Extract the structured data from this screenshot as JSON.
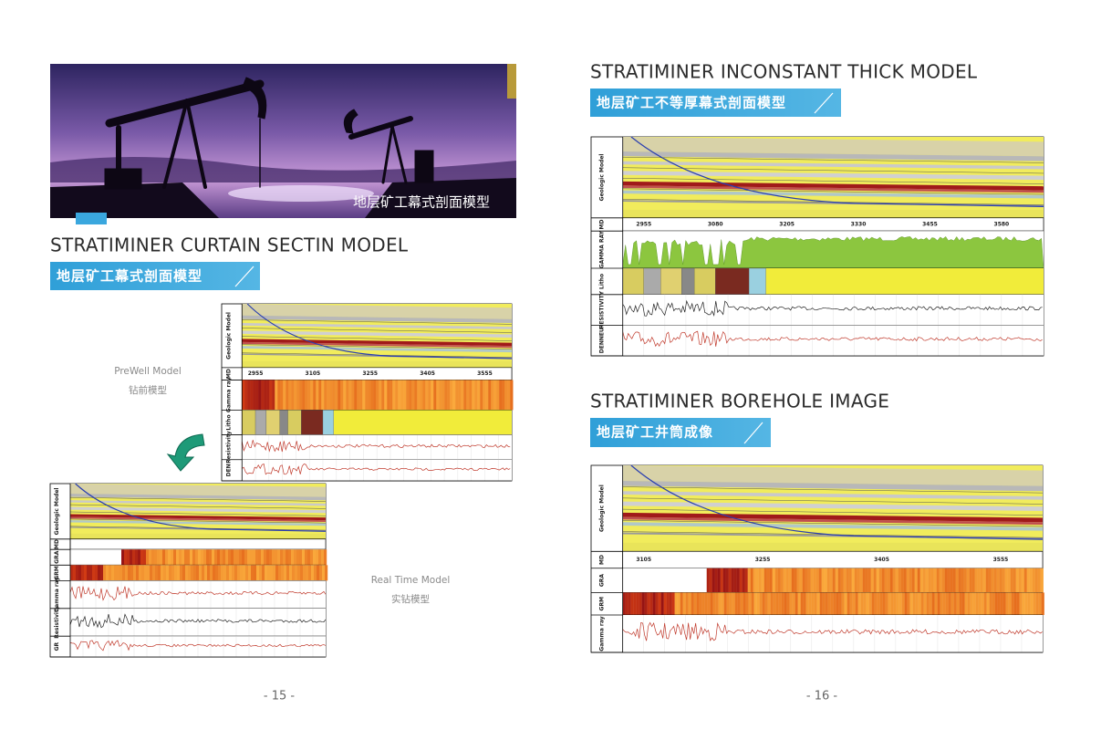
{
  "left_page": {
    "banner_caption": "地层矿工幕式剖面模型",
    "title": "STRATIMINER CURTAIN SECTIN MODEL",
    "subtitle": "地层矿工幕式剖面模型",
    "prewell": {
      "label": "PreWell Model",
      "label_cn": "钻前模型",
      "tracks": [
        "Geologic Model",
        "MD",
        "Gamma ray",
        "Litho",
        "Resistivity",
        "DEN"
      ],
      "depths": [
        "2955",
        "3105",
        "3255",
        "3405",
        "3555"
      ]
    },
    "realtime": {
      "label": "Real Time Model",
      "label_cn": "实钻模型",
      "tracks": [
        "Geologic Model",
        "MD",
        "GRA",
        "GRM",
        "Gamma ray",
        "Resistivity",
        "GR"
      ]
    },
    "page_number": "- 15 -"
  },
  "right_page": {
    "sections": [
      {
        "title": "STRATIMINER INCONSTANT THICK MODEL",
        "subtitle": "地层矿工不等厚幕式剖面模型",
        "tracks": [
          "Geologic Model",
          "MD",
          "GAMMA RAY",
          "Litho",
          "RESISTIVITY",
          "DENNEU"
        ],
        "depths": [
          "2955",
          "3080",
          "3205",
          "3330",
          "3455",
          "3580"
        ]
      },
      {
        "title": "STRATIMINER BOREHOLE IMAGE",
        "subtitle": "地层矿工井筒成像",
        "tracks": [
          "Geologic Model",
          "MD",
          "GRA",
          "GRM",
          "Gamma ray"
        ],
        "depths": [
          "3105",
          "3255",
          "3405",
          "3555"
        ]
      }
    ],
    "page_number": "- 16 -"
  }
}
